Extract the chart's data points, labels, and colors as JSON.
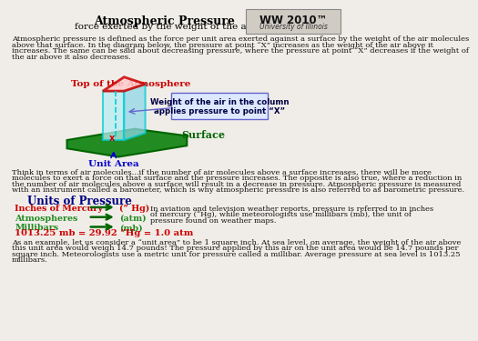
{
  "title": "Atmospheric Pressure",
  "subtitle": "force exerted by the weight of the air",
  "intro_lines": [
    "Atmospheric pressure is defined as the force per unit area exerted against a surface by the weight of the air molecules",
    "above that surface. In the diagram below, the pressure at point “X” increases as the weight of the air above it",
    "increases. The same can be said about decreasing pressure, where the pressure at point “X” decreases if the weight of",
    "the air above it also decreases."
  ],
  "diagram_top_label": "Top of the Atmosphere",
  "diagram_surface_label": "Surface",
  "diagram_unit_label": "Unit Area",
  "diagram_box_label": "Weight of the air in the column\napplies pressure to point “X”",
  "mid_lines": [
    "Think in terms of air molecules...if the number of air molecules above a surface increases, there will be more",
    "molecules to exert a force on that surface and the pressure increases. The opposite is also true, where a reduction in",
    "the number of air molecules above a surface will result in a decrease in pressure. Atmospheric pressure is measured",
    "with an instrument called a barometer, which is why atmospheric pressure is also referred to as barometric pressure."
  ],
  "units_title": "Units of Pressure",
  "units": [
    {
      "label": "Inches of Mercury",
      "abbr": "(” Hg)"
    },
    {
      "label": "Atmospheres",
      "abbr": "(atm)"
    },
    {
      "label": "Millibars",
      "abbr": "(mb)"
    }
  ],
  "side_lines": [
    "In aviation and television weather reports, pressure is referred to in inches",
    "of mercury (“Hg), while meteorologists use millibars (mb), the unit of",
    "pressure found on weather maps."
  ],
  "formula": "1013.25 mb = 29.92 ”Hg = 1.0 atm",
  "bottom_lines": [
    "As an example, let us consider a “unit area” to be 1 square inch. At sea level, on average, the weight of the air above",
    "this unit area would weigh 14.7 pounds! The pressure applied by this air on the unit area would be 14.7 pounds per",
    "square inch. Meteorologists use a metric unit for pressure called a millibar. Average pressure at sea level is 1013.25",
    "millibars."
  ],
  "bg_color": "#f0ede8",
  "title_color": "#000000",
  "red_color": "#cc0000",
  "dark_green": "#006400",
  "medium_green": "#228B22",
  "blue_color": "#0000cc",
  "navy_color": "#000080",
  "cyan_color": "#00ced1",
  "callout_edge": "#6666cc",
  "callout_face": "#dde8ff",
  "callout_text": "#000044",
  "logo_face": "#d0ccc4",
  "logo_edge": "#888888"
}
